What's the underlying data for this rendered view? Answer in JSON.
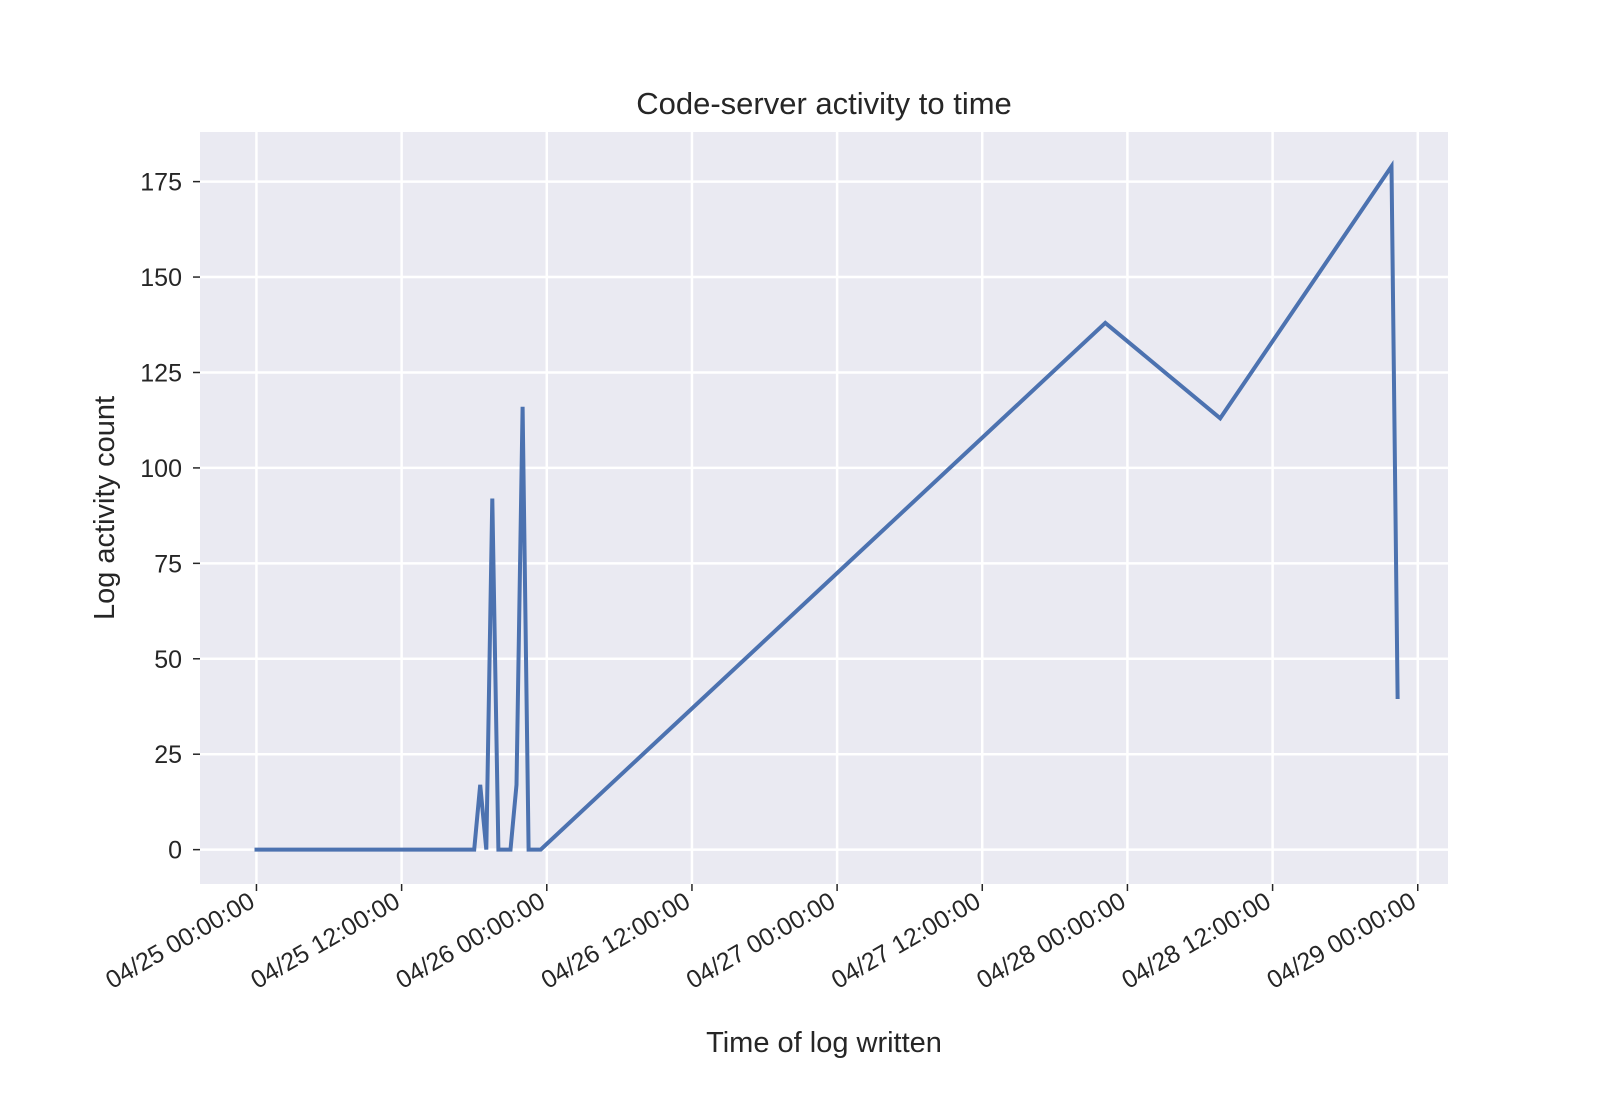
{
  "chart_data": {
    "type": "line",
    "title": "Code-server activity to time",
    "xlabel": "Time of log written",
    "ylabel": "Log activity count",
    "x_tick_labels": [
      "04/25 00:00:00",
      "04/25 12:00:00",
      "04/26 00:00:00",
      "04/26 12:00:00",
      "04/27 00:00:00",
      "04/27 12:00:00",
      "04/28 00:00:00",
      "04/28 12:00:00",
      "04/29 00:00:00"
    ],
    "y_ticks": [
      0,
      25,
      50,
      75,
      100,
      125,
      150,
      175
    ],
    "xlim": [
      "2021-04-24T19:20:00",
      "2021-04-29T02:30:00"
    ],
    "ylim": [
      -9,
      188
    ],
    "grid": true,
    "background_color": "#eaeaf2",
    "series": [
      {
        "color": "#4c72b0",
        "x": [
          "2021-04-25T00:00:00",
          "2021-04-25T18:00:00",
          "2021-04-25T18:30:00",
          "2021-04-25T19:00:00",
          "2021-04-25T19:30:00",
          "2021-04-25T20:00:00",
          "2021-04-25T21:00:00",
          "2021-04-25T21:30:00",
          "2021-04-25T22:00:00",
          "2021-04-25T22:30:00",
          "2021-04-25T23:30:00",
          "2021-04-27T22:10:00",
          "2021-04-28T07:40:00",
          "2021-04-28T21:50:00",
          "2021-04-28T22:20:00"
        ],
        "y": [
          0,
          0,
          17,
          0,
          92,
          0,
          0,
          17,
          116,
          0,
          0,
          138,
          113,
          179,
          40
        ]
      }
    ]
  }
}
